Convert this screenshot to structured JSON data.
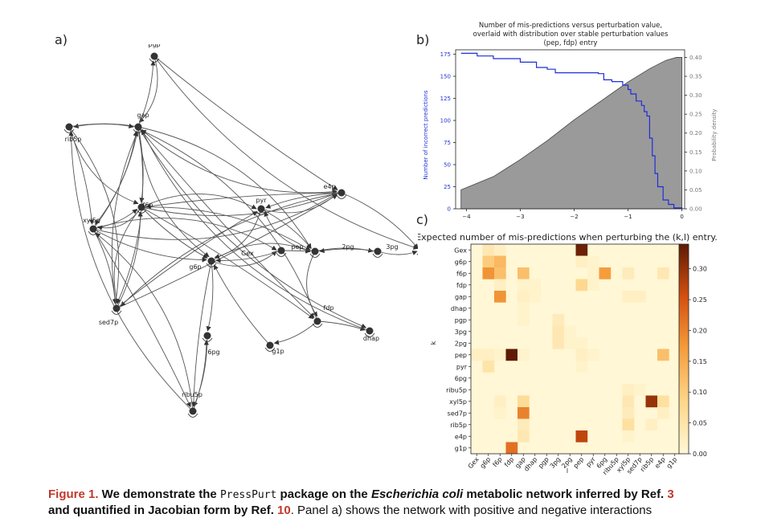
{
  "panels": {
    "a": "a)",
    "b": "b)",
    "c": "c)"
  },
  "network": {
    "nodes": [
      "pgp",
      "gap",
      "rib5p",
      "xyl5p",
      "f6p",
      "sed7p",
      "g6p",
      "Gex",
      "pyr",
      "e4p",
      "pep",
      "2pg",
      "3pg",
      "fdp",
      "6pg",
      "g1p",
      "dhap",
      "ribu5p"
    ],
    "colors": {
      "node": "#333333",
      "edge": "#555555"
    }
  },
  "chart_data": [
    {
      "type": "area",
      "title": "Number of mis-predictions versus perturbation value,\noverlaid with distribution over stable perturbation values\n(pep, fdp) entry",
      "title_lines": [
        "Number of mis-predictions versus perturbation value,",
        "overlaid with distribution over stable perturbation values",
        "(pep, fdp) entry"
      ],
      "xlabel": "",
      "ylabel": "Number of incorrect predictions",
      "ylabel2": "Probability density",
      "xlim": [
        -4.2,
        0.05
      ],
      "ylim": [
        0,
        180
      ],
      "ylim2": [
        0,
        0.42
      ],
      "xticks": [
        "-4",
        "-3",
        "-2",
        "-1",
        "0"
      ],
      "yticks": [
        "0",
        "25",
        "50",
        "75",
        "100",
        "125",
        "150",
        "175"
      ],
      "yticks2": [
        "0.00",
        "0.05",
        "0.10",
        "0.15",
        "0.20",
        "0.25",
        "0.30",
        "0.35",
        "0.40"
      ],
      "series": [
        {
          "kind": "step_line",
          "color": "#1f2fd6",
          "x": [
            -4.1,
            -3.9,
            -3.8,
            -3.5,
            -3.0,
            -2.7,
            -2.5,
            -2.35,
            -2.0,
            -1.6,
            -1.55,
            -1.45,
            -1.3,
            -1.1,
            -1.0,
            -0.95,
            -0.85,
            -0.75,
            -0.7,
            -0.65,
            -0.6,
            -0.55,
            -0.5,
            -0.45,
            -0.35,
            -0.25,
            -0.15,
            0.0
          ],
          "y": [
            176,
            176,
            173,
            170,
            166,
            160,
            158,
            154,
            154,
            154,
            153,
            146,
            144,
            140,
            135,
            130,
            122,
            117,
            110,
            105,
            80,
            60,
            40,
            25,
            10,
            5,
            1,
            0
          ]
        },
        {
          "kind": "area",
          "color": "#9a9a9a",
          "axis": "right",
          "x": [
            -4.1,
            -4.1,
            -3.5,
            -3.0,
            -2.5,
            -2.0,
            -1.5,
            -1.0,
            -0.6,
            -0.3,
            -0.1,
            0.0,
            0.0
          ],
          "y": [
            0.0,
            0.05,
            0.085,
            0.13,
            0.18,
            0.235,
            0.285,
            0.335,
            0.37,
            0.392,
            0.4,
            0.4,
            0.0
          ]
        }
      ]
    },
    {
      "type": "heatmap",
      "title": "Expected number of mis-predictions when perturbing the (k,l) entry.",
      "xlabel": "l",
      "ylabel": "k",
      "rows": [
        "Gex",
        "g6p",
        "f6p",
        "fdp",
        "gap",
        "dhap",
        "pgp",
        "3pg",
        "2pg",
        "pep",
        "pyr",
        "6pg",
        "ribu5p",
        "xyl5p",
        "sed7p",
        "rib5p",
        "e4p",
        "g1p"
      ],
      "cols": [
        "Gex",
        "g6p",
        "f6p",
        "fdp",
        "gap",
        "dhap",
        "pgp",
        "3pg",
        "2pg",
        "pep",
        "pyr",
        "6pg",
        "ribu5p",
        "xyl5p",
        "sed7p",
        "rib5p",
        "e4p",
        "g1p"
      ],
      "colorbar_ticks": [
        "0.00",
        "0.05",
        "0.10",
        "0.15",
        "0.20",
        "0.25",
        "0.30"
      ],
      "vmin": 0,
      "vmax": 0.34,
      "cells": [
        [
          0,
          1,
          0.04
        ],
        [
          0,
          2,
          0.02
        ],
        [
          0,
          9,
          0.33
        ],
        [
          1,
          1,
          0.1
        ],
        [
          1,
          2,
          0.13
        ],
        [
          1,
          9,
          0.02
        ],
        [
          1,
          10,
          0.01
        ],
        [
          2,
          1,
          0.18
        ],
        [
          2,
          2,
          0.12
        ],
        [
          2,
          4,
          0.12
        ],
        [
          2,
          10,
          0.01
        ],
        [
          2,
          11,
          0.17
        ],
        [
          2,
          13,
          0.03
        ],
        [
          2,
          16,
          0.04
        ],
        [
          3,
          2,
          0.02
        ],
        [
          3,
          4,
          0.01
        ],
        [
          3,
          5,
          0.01
        ],
        [
          3,
          9,
          0.08
        ],
        [
          3,
          10,
          0.01
        ],
        [
          4,
          2,
          0.18
        ],
        [
          4,
          4,
          0.02
        ],
        [
          4,
          5,
          0.01
        ],
        [
          4,
          13,
          0.02
        ],
        [
          4,
          14,
          0.02
        ],
        [
          5,
          4,
          0.01
        ],
        [
          6,
          4,
          0.01
        ],
        [
          6,
          7,
          0.03
        ],
        [
          7,
          7,
          0.04
        ],
        [
          7,
          8,
          0.01
        ],
        [
          8,
          7,
          0.04
        ],
        [
          8,
          8,
          0.01
        ],
        [
          8,
          9,
          0.01
        ],
        [
          9,
          0,
          0.02
        ],
        [
          9,
          1,
          0.02
        ],
        [
          9,
          2,
          0.01
        ],
        [
          9,
          3,
          0.34
        ],
        [
          9,
          4,
          0.01
        ],
        [
          9,
          9,
          0.02
        ],
        [
          9,
          10,
          0.01
        ],
        [
          9,
          16,
          0.12
        ],
        [
          10,
          1,
          0.05
        ],
        [
          10,
          9,
          0.01
        ],
        [
          12,
          13,
          0.02
        ],
        [
          12,
          14,
          0.01
        ],
        [
          13,
          2,
          0.02
        ],
        [
          13,
          4,
          0.07
        ],
        [
          13,
          13,
          0.04
        ],
        [
          13,
          15,
          0.3
        ],
        [
          13,
          16,
          0.06
        ],
        [
          14,
          2,
          0.01
        ],
        [
          14,
          4,
          0.2
        ],
        [
          14,
          13,
          0.03
        ],
        [
          14,
          16,
          0.02
        ],
        [
          15,
          4,
          0.03
        ],
        [
          15,
          13,
          0.06
        ],
        [
          15,
          15,
          0.02
        ],
        [
          16,
          4,
          0.04
        ],
        [
          16,
          9,
          0.27
        ],
        [
          16,
          13,
          0.01
        ],
        [
          17,
          3,
          0.22
        ]
      ]
    }
  ],
  "caption": {
    "label": "Figure 1.",
    "part1": " We demonstrate the ",
    "code": "PressPurt",
    "part2": " package on the ",
    "italic": "Escherichia coli",
    "part3": " metabolic network inferred by Ref. ",
    "ref1": "3",
    "line2_a": "and quantified in Jacobian form by Ref. ",
    "ref2": "10",
    "line2_b": ". Panel a) shows the network with positive and negative interactions"
  }
}
